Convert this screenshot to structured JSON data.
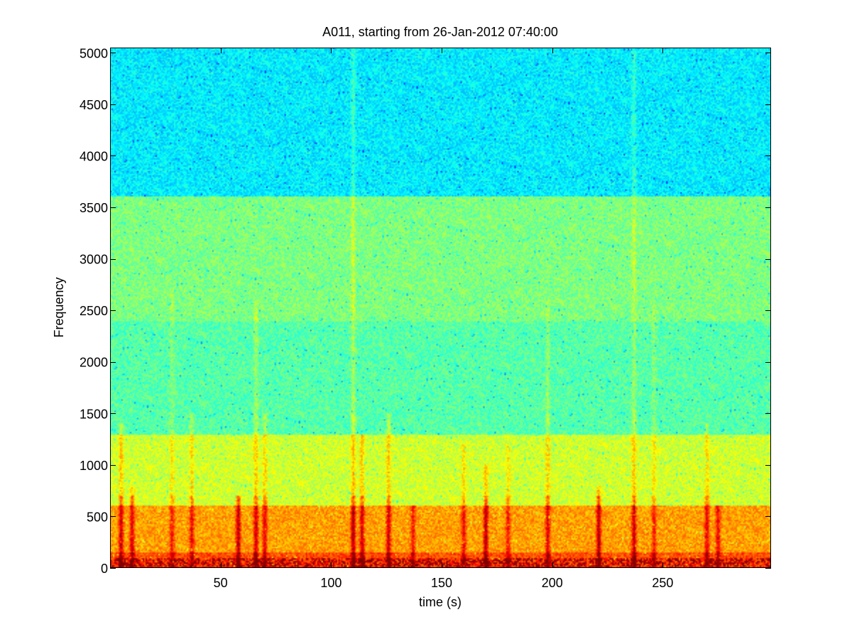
{
  "chart_data": {
    "type": "heatmap",
    "title": "A011, starting from 26-Jan-2012 07:40:00",
    "xlabel": "time (s)",
    "ylabel": "Frequency",
    "xlim": [
      0,
      299
    ],
    "ylim": [
      0,
      5050
    ],
    "x_ticks": [
      50,
      100,
      150,
      200,
      250
    ],
    "y_ticks": [
      0,
      500,
      1000,
      1500,
      2000,
      2500,
      3000,
      3500,
      4000,
      4500,
      5000
    ],
    "colormap": "jet",
    "colors": {
      "background_high_freq": "#21d4e2",
      "mid_band": "#5fe8a8",
      "warm_band": "#c8f050",
      "low_freq": "#f4f032",
      "peak": "#e2221c"
    },
    "bands": [
      {
        "f_min": 3600,
        "f_max": 5050,
        "intensity": 0.36
      },
      {
        "f_min": 2400,
        "f_max": 3600,
        "intensity": 0.5
      },
      {
        "f_min": 1300,
        "f_max": 2400,
        "intensity": 0.46
      },
      {
        "f_min": 600,
        "f_max": 1300,
        "intensity": 0.58
      },
      {
        "f_min": 150,
        "f_max": 600,
        "intensity": 0.72
      },
      {
        "f_min": 0,
        "f_max": 150,
        "intensity": 0.8
      }
    ],
    "events": [
      {
        "t": 5,
        "f_max": 1400,
        "strength": 0.9
      },
      {
        "t": 10,
        "f_max": 800,
        "strength": 0.8
      },
      {
        "t": 28,
        "f_max": 2700,
        "strength": 0.6
      },
      {
        "t": 37,
        "f_max": 1500,
        "strength": 0.7
      },
      {
        "t": 58,
        "f_max": 700,
        "strength": 1.0
      },
      {
        "t": 66,
        "f_max": 2600,
        "strength": 0.9
      },
      {
        "t": 70,
        "f_max": 1500,
        "strength": 0.8
      },
      {
        "t": 110,
        "f_max": 5050,
        "strength": 1.0
      },
      {
        "t": 114,
        "f_max": 1300,
        "strength": 0.9
      },
      {
        "t": 126,
        "f_max": 1500,
        "strength": 0.9
      },
      {
        "t": 137,
        "f_max": 600,
        "strength": 0.6
      },
      {
        "t": 160,
        "f_max": 1200,
        "strength": 0.7
      },
      {
        "t": 170,
        "f_max": 1000,
        "strength": 1.0
      },
      {
        "t": 180,
        "f_max": 1200,
        "strength": 0.6
      },
      {
        "t": 198,
        "f_max": 2600,
        "strength": 0.8
      },
      {
        "t": 221,
        "f_max": 800,
        "strength": 1.0
      },
      {
        "t": 237,
        "f_max": 5050,
        "strength": 0.9
      },
      {
        "t": 246,
        "f_max": 2600,
        "strength": 0.6
      },
      {
        "t": 270,
        "f_max": 1400,
        "strength": 0.8
      },
      {
        "t": 275,
        "f_max": 600,
        "strength": 0.7
      }
    ]
  }
}
